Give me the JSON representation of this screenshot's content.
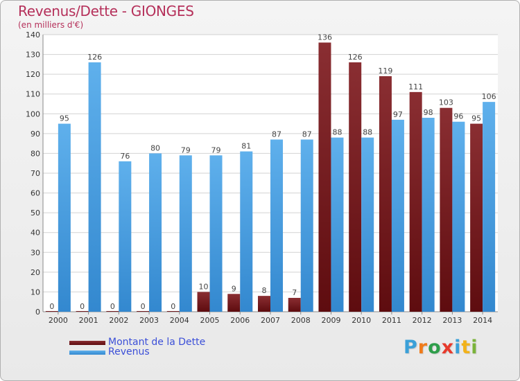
{
  "header": {
    "title": "Revenus/Dette - GIONGES",
    "subtitle": "(en milliers d'€)"
  },
  "logo": {
    "text": "Proxiti",
    "letter_colors": [
      "#3aa0d8",
      "#f07b1a",
      "#2e9e4a",
      "#e73a2c",
      "#3aa0d8",
      "#f2b21a",
      "#7ab33a"
    ]
  },
  "colors": {
    "dette_light": "#8a2e32",
    "dette_dark": "#5e0c0f",
    "revenus_light": "#5fb0ec",
    "revenus_dark": "#3388cf",
    "grid": "#d2d2d2",
    "axis_text": "#333333",
    "label_text": "#444444"
  },
  "chart_data": {
    "type": "bar",
    "categories": [
      "2000",
      "2001",
      "2002",
      "2003",
      "2004",
      "2005",
      "2006",
      "2007",
      "2008",
      "2009",
      "2010",
      "2011",
      "2012",
      "2013",
      "2014"
    ],
    "series": [
      {
        "name": "Montant de la Dette",
        "values": [
          0,
          0,
          0,
          0,
          0,
          10,
          9,
          8,
          7,
          136,
          126,
          119,
          111,
          103,
          95
        ]
      },
      {
        "name": "Revenus",
        "values": [
          95,
          126,
          76,
          80,
          79,
          79,
          81,
          87,
          87,
          88,
          88,
          97,
          98,
          96,
          106
        ]
      }
    ],
    "yticks": [
      0,
      10,
      20,
      30,
      40,
      50,
      60,
      70,
      80,
      90,
      100,
      110,
      120,
      130,
      140
    ],
    "ylim": [
      0,
      140
    ],
    "grid": true,
    "legend": "bottom-left",
    "data_labels": true
  }
}
